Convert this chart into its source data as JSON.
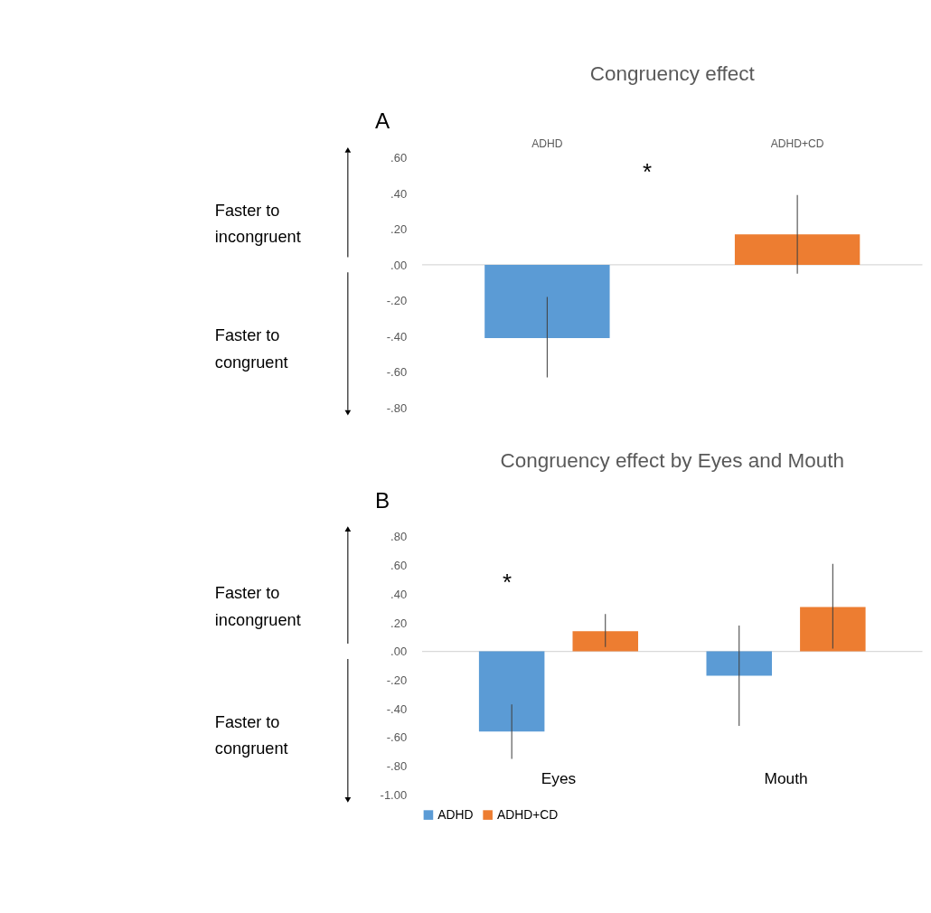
{
  "chart_data": [
    {
      "type": "bar",
      "title": "Congruency effect",
      "categories": [
        "ADHD",
        "ADHD+CD"
      ],
      "values": [
        -0.41,
        0.17
      ],
      "colors": [
        "#5b9bd5",
        "#ed7d31"
      ],
      "errors": [
        [
          -0.63,
          -0.18
        ],
        [
          -0.05,
          0.39
        ]
      ],
      "ylim": [
        -0.8,
        0.6
      ],
      "yticks": [
        {
          "value": 0.6,
          "label": ".60"
        },
        {
          "value": 0.4,
          "label": ".40"
        },
        {
          "value": 0.2,
          "label": ".20"
        },
        {
          "value": 0,
          "label": ".00"
        },
        {
          "value": -0.2,
          "label": "-.20"
        },
        {
          "value": -0.4,
          "label": "-.40"
        },
        {
          "value": -0.6,
          "label": "-.60"
        },
        {
          "value": -0.8,
          "label": "-.80"
        }
      ],
      "grid": false,
      "legend": false,
      "ref_lines": [
        {
          "axis": "y",
          "value": 0,
          "color": "#d9d9d9"
        }
      ],
      "annotations": [
        "A",
        "Faster to\nincongruent",
        "Faster to\ncongruent",
        "*"
      ]
    },
    {
      "type": "bar",
      "title": "Congruency effect by Eyes and Mouth",
      "categories": [
        "Eyes",
        "Mouth"
      ],
      "series": [
        {
          "name": "ADHD",
          "color": "#5b9bd5",
          "values": [
            -0.56,
            -0.17
          ],
          "errors": [
            [
              -0.75,
              -0.37
            ],
            [
              -0.52,
              0.18
            ]
          ]
        },
        {
          "name": "ADHD+CD",
          "color": "#ed7d31",
          "values": [
            0.14,
            0.31
          ],
          "errors": [
            [
              0.03,
              0.26
            ],
            [
              0.02,
              0.61
            ]
          ]
        }
      ],
      "ylim": [
        -1.0,
        0.8
      ],
      "yticks": [
        {
          "value": 0.8,
          "label": ".80"
        },
        {
          "value": 0.6,
          "label": ".60"
        },
        {
          "value": 0.4,
          "label": ".40"
        },
        {
          "value": 0.2,
          "label": ".20"
        },
        {
          "value": 0,
          "label": ".00"
        },
        {
          "value": -0.2,
          "label": "-.20"
        },
        {
          "value": -0.4,
          "label": "-.40"
        },
        {
          "value": -0.6,
          "label": "-.60"
        },
        {
          "value": -0.8,
          "label": "-.80"
        },
        {
          "value": -1.0,
          "label": "-1.00"
        }
      ],
      "grid": false,
      "legend": "bottom",
      "ref_lines": [
        {
          "axis": "y",
          "value": 0,
          "color": "#d9d9d9"
        }
      ],
      "annotations": [
        "B",
        "Faster to\nincongruent",
        "Faster to\ncongruent",
        "*"
      ]
    }
  ]
}
